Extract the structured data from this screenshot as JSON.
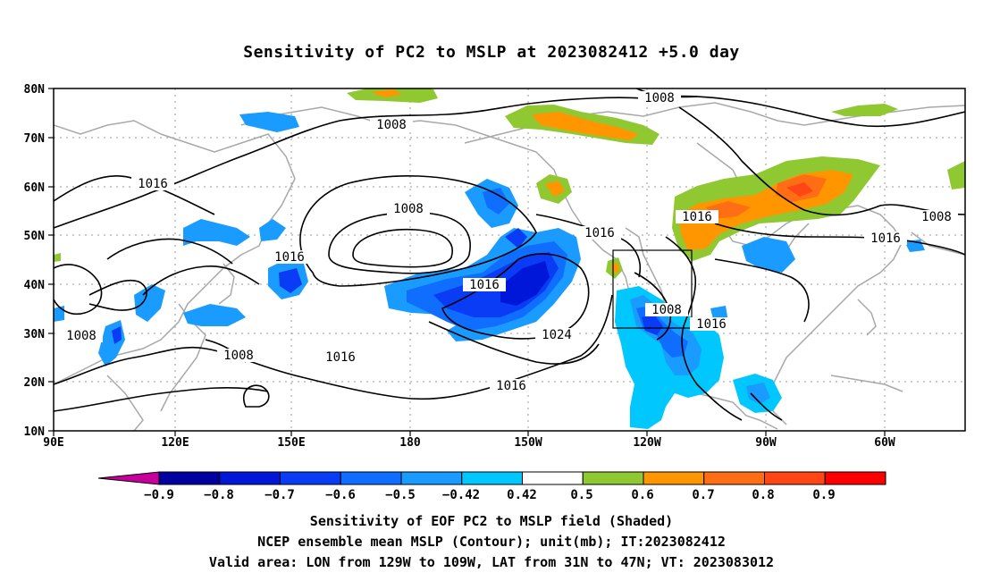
{
  "title": "Sensitivity of PC2 to MSLP at 2023082412 +5.0 day",
  "map": {
    "lat_labels": [
      "80N",
      "70N",
      "60N",
      "50N",
      "40N",
      "30N",
      "20N",
      "10N"
    ],
    "lon_labels": [
      "90E",
      "120E",
      "150E",
      "180",
      "150W",
      "120W",
      "90W",
      "60W"
    ],
    "contour_labels": [
      "1008",
      "1008",
      "1016",
      "1008",
      "1016",
      "1016",
      "1016",
      "1024",
      "1016",
      "1008",
      "1016",
      "1008",
      "1016",
      "1016",
      "1008",
      "1016"
    ],
    "valid_area": {
      "lon_from": "129W",
      "lon_to": "109W",
      "lat_from": "31N",
      "lat_to": "47N"
    }
  },
  "colorbar": {
    "labels": [
      "−0.9",
      "−0.8",
      "−0.7",
      "−0.6",
      "−0.5",
      "−0.42",
      "0.42",
      "0.5",
      "0.6",
      "0.7",
      "0.8",
      "0.9"
    ],
    "colors": [
      "#c8009b",
      "#0000a0",
      "#0016d8",
      "#0a3cf5",
      "#0f6eff",
      "#1a9bff",
      "#00c8ff",
      "#ffffff",
      "#90c832",
      "#ff9600",
      "#ff6e14",
      "#ff4614",
      "#ff0000",
      "#ff96c8"
    ]
  },
  "footer": {
    "line1": "Sensitivity of EOF PC2 to MSLP field (Shaded)",
    "line2": "NCEP ensemble mean MSLP (Contour); unit(mb); IT:2023082412",
    "line3": "Valid area: LON from 129W to 109W, LAT from 31N to 47N; VT: 2023083012"
  }
}
